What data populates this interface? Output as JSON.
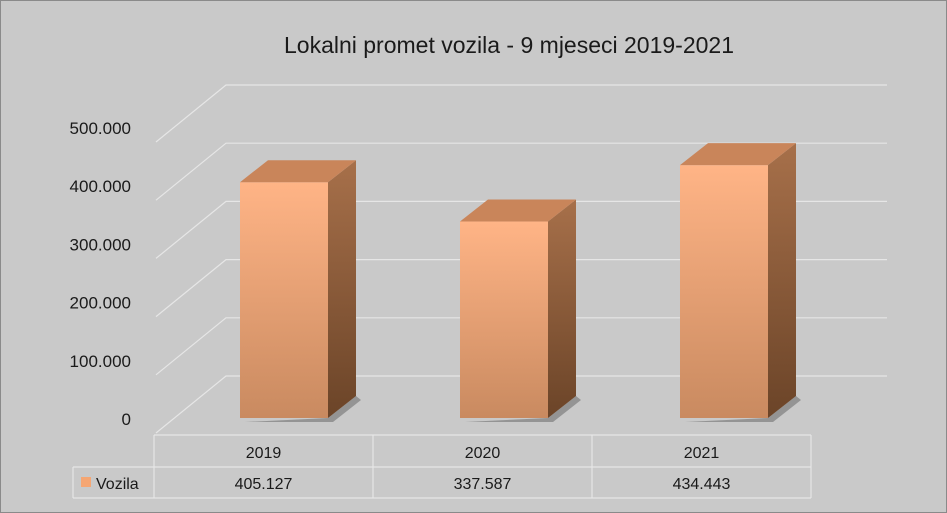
{
  "chart_data": {
    "type": "bar",
    "title": "Lokalni promet vozila - 9 mjeseci 2019-2021",
    "categories": [
      "2019",
      "2020",
      "2021"
    ],
    "series": [
      {
        "name": "Vozila",
        "values": [
          405127,
          337587,
          434443
        ],
        "color": "#f5a673"
      }
    ],
    "data_labels": [
      "405.127",
      "337.587",
      "434.443"
    ],
    "y_ticks": [
      "0",
      "100.000",
      "200.000",
      "300.000",
      "400.000",
      "500.000"
    ],
    "y_tick_values": [
      0,
      100000,
      200000,
      300000,
      400000,
      500000
    ],
    "ylim": [
      0,
      500000
    ],
    "grid": true,
    "legend": "data-table",
    "colors": {
      "background": "#c9c9c9",
      "gridline": "#e6e6e6",
      "bar_front": "#f5a673",
      "bar_side": "#9b6440",
      "bar_top": "#c9855a"
    }
  }
}
